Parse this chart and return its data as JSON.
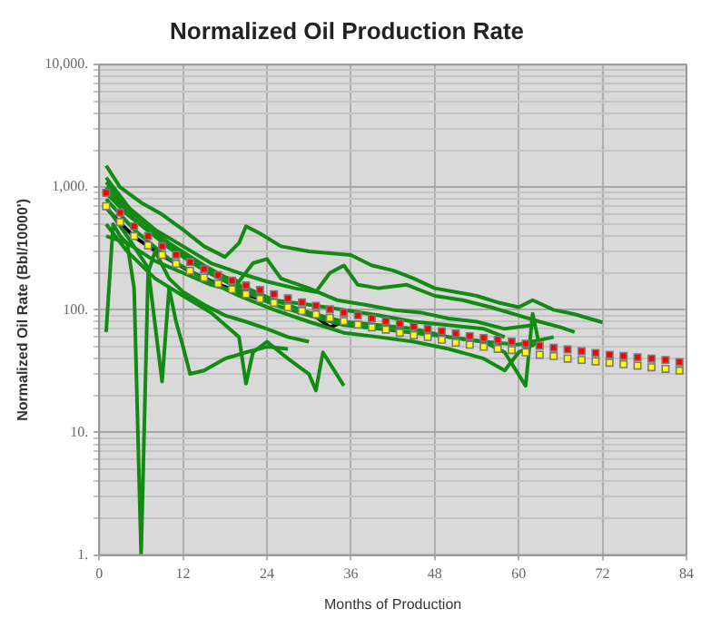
{
  "chart_data": {
    "type": "line",
    "title": "Normalized Oil Production Rate",
    "xlabel": "Months of Production",
    "ylabel": "Normalized Oil Rate (Bbl/10000')",
    "log": "y",
    "grid": true,
    "legend": false,
    "marker": "none",
    "line_style": "solid",
    "xlim": [
      0,
      84
    ],
    "xticks": [
      0,
      12,
      24,
      36,
      48,
      60,
      72,
      84
    ],
    "ylim": [
      1,
      10000
    ],
    "yticks": [
      {
        "value": 1,
        "label": "1."
      },
      {
        "value": 2,
        "label": null
      },
      {
        "value": 3,
        "label": null
      },
      {
        "value": 4,
        "label": null
      },
      {
        "value": 5,
        "label": null
      },
      {
        "value": 6,
        "label": null
      },
      {
        "value": 7,
        "label": null
      },
      {
        "value": 8,
        "label": null
      },
      {
        "value": 9,
        "label": null
      },
      {
        "value": 10,
        "label": "10."
      },
      {
        "value": 20,
        "label": null
      },
      {
        "value": 30,
        "label": null
      },
      {
        "value": 40,
        "label": null
      },
      {
        "value": 50,
        "label": null
      },
      {
        "value": 60,
        "label": null
      },
      {
        "value": 70,
        "label": null
      },
      {
        "value": 80,
        "label": null
      },
      {
        "value": 90,
        "label": null
      },
      {
        "value": 100,
        "label": "100."
      },
      {
        "value": 200,
        "label": null
      },
      {
        "value": 300,
        "label": null
      },
      {
        "value": 400,
        "label": null
      },
      {
        "value": 500,
        "label": null
      },
      {
        "value": 600,
        "label": null
      },
      {
        "value": 700,
        "label": null
      },
      {
        "value": 800,
        "label": null
      },
      {
        "value": 900,
        "label": null
      },
      {
        "value": 1000,
        "label": "1,000."
      },
      {
        "value": 2000,
        "label": null
      },
      {
        "value": 3000,
        "label": null
      },
      {
        "value": 4000,
        "label": null
      },
      {
        "value": 5000,
        "label": null
      },
      {
        "value": 6000,
        "label": null
      },
      {
        "value": 7000,
        "label": null
      },
      {
        "value": 8000,
        "label": null
      },
      {
        "value": 9000,
        "label": null
      },
      {
        "value": 10000,
        "label": "10,000."
      }
    ],
    "series": [
      {
        "color": "#138a13",
        "x": [
          1,
          3,
          6,
          9,
          12,
          15,
          18,
          20,
          21,
          23,
          26,
          30,
          33,
          36,
          39,
          42,
          45,
          48,
          51,
          54,
          57,
          60,
          62,
          65,
          68,
          72
        ],
        "values": [
          1500,
          1000,
          750,
          600,
          450,
          330,
          270,
          350,
          480,
          420,
          330,
          300,
          290,
          280,
          230,
          210,
          180,
          150,
          140,
          130,
          115,
          105,
          120,
          100,
          92,
          79
        ]
      },
      {
        "color": "#138a13",
        "x": [
          1,
          4,
          8,
          12,
          16,
          20,
          24,
          28,
          31,
          33,
          35,
          37,
          40,
          44,
          48,
          52,
          56,
          60,
          63,
          66,
          68
        ],
        "values": [
          1100,
          700,
          450,
          330,
          240,
          200,
          170,
          150,
          140,
          200,
          230,
          160,
          150,
          160,
          130,
          120,
          105,
          90,
          80,
          72,
          66
        ]
      },
      {
        "color": "#138a13",
        "x": [
          1,
          4,
          8,
          12,
          16,
          20,
          22,
          24,
          26,
          30,
          34,
          38,
          42,
          46,
          50,
          54,
          58,
          62
        ],
        "values": [
          900,
          600,
          400,
          280,
          200,
          170,
          240,
          260,
          180,
          150,
          120,
          110,
          100,
          95,
          85,
          80,
          70,
          75
        ]
      },
      {
        "color": "#138a13",
        "x": [
          1,
          2,
          3,
          4,
          5,
          6,
          7,
          8,
          10,
          12,
          15,
          18,
          21,
          24,
          27,
          30
        ],
        "values": [
          66,
          500,
          400,
          350,
          150,
          1,
          200,
          300,
          180,
          140,
          110,
          90,
          80,
          70,
          60,
          55
        ]
      },
      {
        "color": "#138a13",
        "x": [
          1,
          4,
          7,
          9,
          10,
          11,
          12,
          13,
          15,
          18,
          21,
          24,
          27
        ],
        "values": [
          700,
          400,
          220,
          26,
          150,
          80,
          50,
          30,
          32,
          40,
          45,
          50,
          48
        ]
      },
      {
        "color": "#138a13",
        "x": [
          1,
          4,
          8,
          12,
          16,
          20,
          21,
          22,
          24,
          27,
          30,
          31,
          32,
          35
        ],
        "values": [
          500,
          300,
          180,
          130,
          95,
          60,
          25,
          45,
          55,
          40,
          30,
          22,
          45,
          24
        ]
      },
      {
        "color": "#138a13",
        "x": [
          1,
          5,
          10,
          15,
          20,
          25,
          30,
          35,
          40,
          45,
          50,
          55,
          58,
          61,
          62,
          63
        ],
        "values": [
          1200,
          600,
          350,
          230,
          160,
          120,
          95,
          80,
          75,
          70,
          60,
          55,
          45,
          24,
          93,
          50
        ]
      },
      {
        "color": "#138a13",
        "x": [
          1,
          5,
          10,
          15,
          20,
          25,
          30,
          35,
          40,
          45,
          50,
          55,
          58,
          60,
          63
        ],
        "values": [
          800,
          450,
          260,
          180,
          130,
          100,
          80,
          65,
          60,
          55,
          48,
          40,
          32,
          45,
          55
        ]
      },
      {
        "color": "#138a13",
        "x": [
          1,
          5,
          10,
          15,
          20,
          25,
          30,
          35,
          40,
          45,
          50,
          55,
          60,
          65
        ],
        "values": [
          1000,
          550,
          320,
          210,
          150,
          110,
          90,
          75,
          70,
          65,
          60,
          55,
          52,
          60
        ]
      },
      {
        "color": "#138a13",
        "x": [
          1,
          4,
          8,
          12,
          16,
          20,
          25,
          30,
          35,
          40,
          45,
          50,
          55,
          58
        ],
        "values": [
          400,
          350,
          250,
          200,
          160,
          140,
          120,
          110,
          100,
          90,
          80,
          75,
          70,
          60
        ]
      },
      {
        "color": "#000000",
        "x": [
          1,
          3,
          5,
          9,
          13,
          17,
          21,
          25,
          29,
          31,
          33,
          35
        ],
        "values": [
          680,
          510,
          395,
          278,
          206,
          162,
          133,
          113,
          null,
          88,
          72,
          80
        ]
      },
      {
        "type": "scatter",
        "marker": "square",
        "color": "#ff0000",
        "x": [
          1,
          3,
          5,
          7,
          9,
          11,
          13,
          15,
          17,
          19,
          21,
          23,
          25,
          27,
          29,
          31,
          33,
          35,
          37,
          39,
          41,
          43,
          45,
          47,
          49,
          51,
          53,
          55,
          57,
          59,
          61,
          63,
          65,
          67,
          69,
          71,
          73,
          75,
          77,
          79,
          81,
          83
        ],
        "values": [
          900,
          620,
          480,
          400,
          330,
          280,
          245,
          215,
          192,
          173,
          158,
          145,
          134,
          124,
          115,
          108,
          101,
          95,
          90,
          85,
          81,
          77,
          73,
          70,
          67,
          64,
          61,
          59,
          57,
          55,
          53,
          51,
          49,
          47.5,
          46,
          44.5,
          43,
          42,
          41,
          40,
          39,
          37.5
        ]
      },
      {
        "type": "scatter",
        "marker": "square",
        "color": "#ffff00",
        "x": [
          1,
          3,
          5,
          7,
          9,
          11,
          13,
          15,
          17,
          19,
          21,
          23,
          25,
          27,
          29,
          31,
          33,
          35,
          37,
          39,
          41,
          43,
          45,
          47,
          49,
          51,
          53,
          55,
          57,
          59,
          61,
          63,
          65,
          67,
          69,
          71,
          73,
          75,
          77,
          79,
          81,
          83
        ],
        "values": [
          700,
          520,
          400,
          335,
          280,
          238,
          208,
          183,
          163,
          147,
          134,
          123,
          114,
          105,
          98,
          92,
          86,
          81,
          76,
          72,
          69,
          65,
          62,
          60,
          57,
          54,
          52,
          50,
          48,
          47,
          45,
          43,
          42,
          40,
          39,
          38,
          37,
          36,
          35,
          34,
          33,
          32
        ]
      }
    ]
  }
}
